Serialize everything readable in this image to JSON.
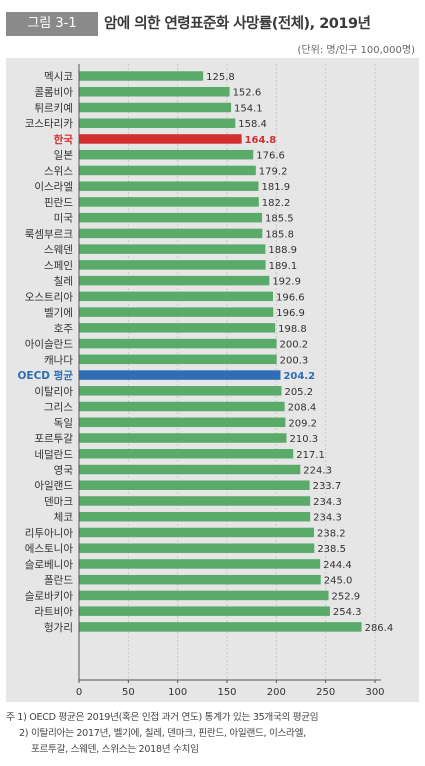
{
  "header": {
    "figure_label": "그림 3-1",
    "title": "암에 의한 연령표준화 사망률(전체), 2019년",
    "unit": "(단위: 명/인구 100,000명)"
  },
  "colors": {
    "default_bar": "#5aab6a",
    "korea_bar": "#d32f2f",
    "oecd_bar": "#2f6db5",
    "panel_bg": "#e6e6e6"
  },
  "notes": [
    "주 1) OECD 평균은 2019년(혹은 인접 과거 연도) 통계가 있는 35개국의 평균임",
    "2) 이탈리아는 2017년, 벨기에, 칠레, 덴마크, 핀란드, 아일랜드, 이스라엘,",
    "포르투갈, 스웨덴, 스위스는 2018년 수치임"
  ],
  "chart_data": {
    "type": "bar",
    "orientation": "horizontal",
    "title": "암에 의한 연령표준화 사망률(전체), 2019년",
    "xlabel": "",
    "ylabel": "",
    "xlim": [
      0,
      300
    ],
    "xticks": [
      0,
      50,
      100,
      150,
      200,
      250,
      300
    ],
    "grid": true,
    "categories": [
      "멕시코",
      "콜롬비아",
      "튀르키예",
      "코스타리카",
      "한국",
      "일본",
      "스위스",
      "이스라엘",
      "핀란드",
      "미국",
      "룩셈부르크",
      "스웨덴",
      "스페인",
      "칠레",
      "오스트리아",
      "벨기에",
      "호주",
      "아이슬란드",
      "캐나다",
      "OECD 평균",
      "이탈리아",
      "그리스",
      "독일",
      "포르투갈",
      "네덜란드",
      "영국",
      "아일랜드",
      "덴마크",
      "체코",
      "리투아니아",
      "에스토니아",
      "슬로베니아",
      "폴란드",
      "슬로바키아",
      "라트비아",
      "헝가리"
    ],
    "values": [
      125.8,
      152.6,
      154.1,
      158.4,
      164.8,
      176.6,
      179.2,
      181.9,
      182.2,
      185.5,
      185.8,
      188.9,
      189.1,
      192.9,
      196.6,
      196.9,
      198.8,
      200.2,
      200.3,
      204.2,
      205.2,
      208.4,
      209.2,
      210.3,
      217.1,
      224.3,
      233.7,
      234.3,
      234.3,
      238.2,
      238.5,
      244.4,
      245.0,
      252.9,
      254.3,
      286.4
    ],
    "value_labels": [
      "125.8",
      "152.6",
      "154.1",
      "158.4",
      "164.8",
      "176.6",
      "179.2",
      "181.9",
      "182.2",
      "185.5",
      "185.8",
      "188.9",
      "189.1",
      "192.9",
      "196.6",
      "196.9",
      "198.8",
      "200.2",
      "200.3",
      "204.2",
      "205.2",
      "208.4",
      "209.2",
      "210.3",
      "217.1",
      "224.3",
      "233.7",
      "234.3",
      "234.3",
      "238.2",
      "238.5",
      "244.4",
      "245.0",
      "252.9",
      "254.3",
      "286.4"
    ],
    "highlights": {
      "한국": "korea",
      "OECD 평균": "oecd"
    }
  }
}
